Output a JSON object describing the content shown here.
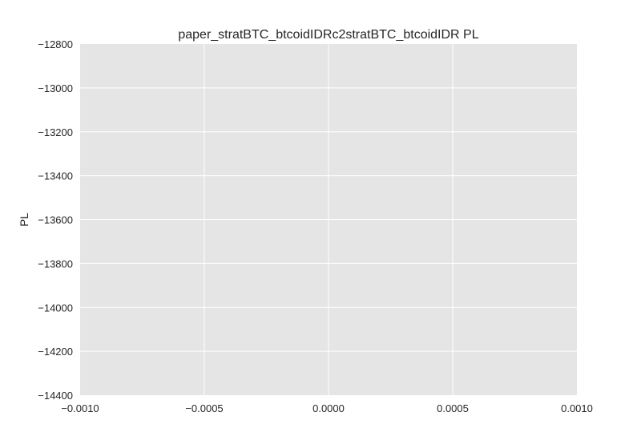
{
  "chart_data": {
    "type": "line",
    "title": "paper_stratBTC_btcoidIDRc2stratBTC_btcoidIDR PL",
    "xlabel": "",
    "ylabel": "PL",
    "xlim": [
      -0.001,
      0.001
    ],
    "ylim": [
      -14400,
      -12800
    ],
    "x_ticks": [
      -0.001,
      -0.0005,
      0.0,
      0.0005,
      0.001
    ],
    "x_tick_labels": [
      "−0.0010",
      "−0.0005",
      "0.0000",
      "0.0005",
      "0.0010"
    ],
    "y_ticks": [
      -12800,
      -13000,
      -13200,
      -13400,
      -13600,
      -13800,
      -14000,
      -14200,
      -14400
    ],
    "y_tick_labels": [
      "−12800",
      "−13000",
      "−13200",
      "−13400",
      "−13600",
      "−13800",
      "−14000",
      "−14200",
      "−14400"
    ],
    "grid": true,
    "series": [
      {
        "x": [],
        "y": []
      }
    ],
    "colors": {
      "plot_background": "#e5e5e5",
      "grid": "#ffffff",
      "text": "#262626"
    }
  }
}
